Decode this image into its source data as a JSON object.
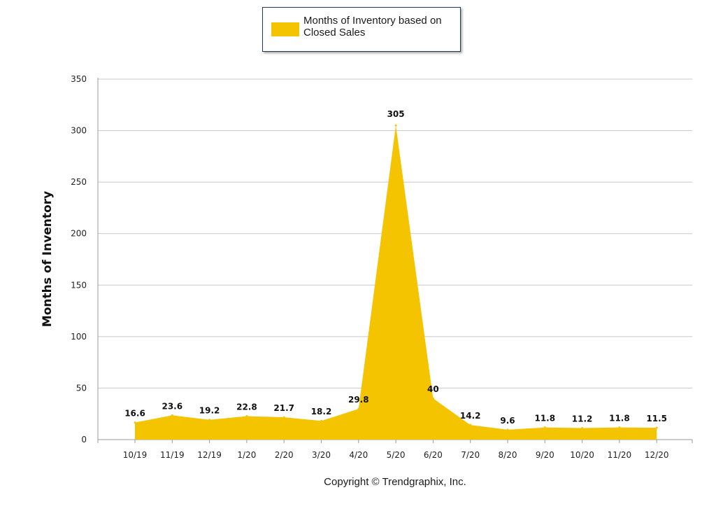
{
  "legend": {
    "label": "Months of Inventory based on Closed Sales",
    "color": "#f5c400"
  },
  "footer": {
    "copyright": "Copyright © Trendgraphix, Inc."
  },
  "chart_data": {
    "type": "area",
    "title": "",
    "xlabel": "",
    "ylabel": "Months of Inventory",
    "categories": [
      "10/19",
      "11/19",
      "12/19",
      "1/20",
      "2/20",
      "3/20",
      "4/20",
      "5/20",
      "6/20",
      "7/20",
      "8/20",
      "9/20",
      "10/20",
      "11/20",
      "12/20"
    ],
    "series": [
      {
        "name": "Months of Inventory based on Closed Sales",
        "values": [
          16.6,
          23.6,
          19.2,
          22.8,
          21.7,
          18.2,
          29.8,
          305,
          40,
          14.2,
          9.6,
          11.8,
          11.2,
          11.8,
          11.5
        ],
        "labels": [
          "16.6",
          "23.6",
          "19.2",
          "22.8",
          "21.7",
          "18.2",
          "29.8",
          "305",
          "40",
          "14.2",
          "9.6",
          "11.8",
          "11.2",
          "11.8",
          "11.5"
        ]
      }
    ],
    "yticks": [
      "0",
      "50",
      "100",
      "150",
      "200",
      "250",
      "300",
      "350"
    ],
    "ylim": [
      0,
      350
    ],
    "grid": true,
    "legend_position": "top-center",
    "colors": {
      "fill": "#f5c400",
      "grid": "#c8c8c8",
      "axis": "#9a9a9a"
    }
  }
}
